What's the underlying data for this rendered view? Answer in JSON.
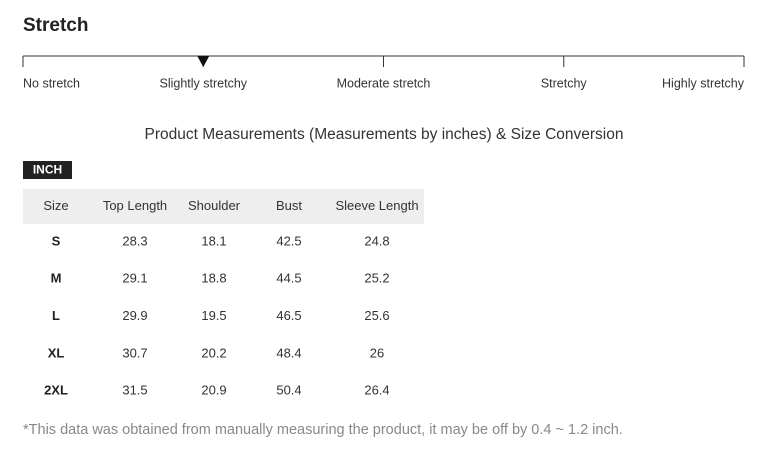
{
  "stretch": {
    "title": "Stretch",
    "levels": [
      "No stretch",
      "Slightly stretchy",
      "Moderate stretch",
      "Stretchy",
      "Highly stretchy"
    ],
    "selected": 1
  },
  "subtitle": "Product Measurements (Measurements by inches) & Size Conversion",
  "unit": "INCH",
  "table": {
    "columns": [
      "Size",
      "Top Length",
      "Shoulder",
      "Bust",
      "Sleeve Length"
    ],
    "rows": [
      [
        "S",
        "28.3",
        "18.1",
        "42.5",
        "24.8"
      ],
      [
        "M",
        "29.1",
        "18.8",
        "44.5",
        "25.2"
      ],
      [
        "L",
        "29.9",
        "19.5",
        "46.5",
        "25.6"
      ],
      [
        "XL",
        "30.7",
        "20.2",
        "48.4",
        "26"
      ],
      [
        "2XL",
        "31.5",
        "20.9",
        "50.4",
        "26.4"
      ]
    ]
  },
  "note": "*This data was obtained from manually measuring the product, it may be off by 0.4 ~ 1.2 inch."
}
